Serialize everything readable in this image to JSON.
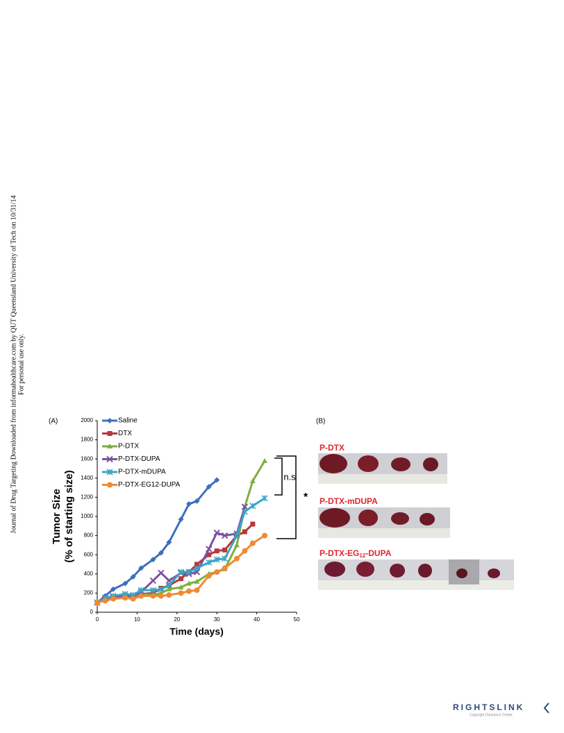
{
  "sidebar": [
    "Journal of Drug Targeting Downloaded from informahealthcare.com by QUT Queensland University of Tech on 10/31/14",
    "For personal use only."
  ],
  "chart_data": {
    "type": "line",
    "panel": "(A)",
    "xlabel": "Time (days)",
    "ylabel": [
      "Tumor Size",
      "(% of starting size)"
    ],
    "xlim": [
      0,
      50
    ],
    "xticks": [
      0,
      10,
      20,
      30,
      40,
      50
    ],
    "ylim": [
      0,
      2000
    ],
    "yticks": [
      0,
      200,
      400,
      600,
      800,
      1000,
      1200,
      1400,
      1600,
      1800,
      2000
    ],
    "legend": "upper left",
    "grid": false,
    "annotations": [
      "n.s",
      "*"
    ],
    "series": [
      {
        "name": "Saline",
        "color": "#3c6fbe",
        "marker": "diamond",
        "x": [
          0,
          2,
          4,
          7,
          9,
          11,
          14,
          16,
          18,
          21,
          23,
          25,
          28,
          30
        ],
        "values": [
          100,
          170,
          240,
          300,
          370,
          460,
          550,
          620,
          730,
          970,
          1130,
          1160,
          1310,
          1380
        ]
      },
      {
        "name": "DTX",
        "color": "#b8373a",
        "marker": "square",
        "x": [
          0,
          2,
          4,
          7,
          9,
          11,
          14,
          16,
          18,
          21,
          23,
          25,
          28,
          30,
          32,
          35,
          37,
          39
        ],
        "values": [
          100,
          130,
          150,
          160,
          150,
          190,
          200,
          250,
          280,
          350,
          420,
          500,
          600,
          640,
          650,
          800,
          840,
          920
        ]
      },
      {
        "name": "P-DTX",
        "color": "#7fae3e",
        "marker": "triangle",
        "x": [
          0,
          2,
          4,
          7,
          9,
          11,
          14,
          16,
          18,
          21,
          23,
          25,
          28,
          30,
          32,
          35,
          37,
          39,
          42
        ],
        "values": [
          100,
          130,
          150,
          160,
          170,
          190,
          180,
          200,
          240,
          260,
          300,
          320,
          400,
          420,
          450,
          700,
          1100,
          1370,
          1580
        ]
      },
      {
        "name": "P-DTX-DUPA",
        "color": "#7a52a0",
        "marker": "x",
        "x": [
          0,
          2,
          4,
          7,
          9,
          11,
          14,
          16,
          18,
          21,
          23,
          25,
          28,
          30,
          32,
          35,
          37
        ],
        "values": [
          100,
          140,
          160,
          170,
          170,
          210,
          330,
          410,
          330,
          410,
          400,
          420,
          660,
          830,
          800,
          820,
          1100
        ]
      },
      {
        "name": "P-DTX-mDUPA",
        "color": "#3aa5c5",
        "marker": "star",
        "x": [
          0,
          2,
          4,
          7,
          9,
          11,
          14,
          16,
          18,
          21,
          23,
          25,
          28,
          30,
          32,
          35,
          37,
          39,
          42
        ],
        "values": [
          100,
          150,
          170,
          190,
          180,
          230,
          230,
          240,
          280,
          420,
          420,
          460,
          520,
          550,
          560,
          800,
          1050,
          1110,
          1190
        ]
      },
      {
        "name": "P-DTX-EG12-DUPA",
        "color": "#f08a32",
        "marker": "circle",
        "x": [
          0,
          2,
          4,
          7,
          9,
          11,
          14,
          16,
          18,
          21,
          23,
          25,
          28,
          30,
          32,
          35,
          37,
          39,
          42
        ],
        "values": [
          100,
          120,
          140,
          150,
          140,
          170,
          170,
          170,
          180,
          200,
          220,
          230,
          380,
          420,
          460,
          560,
          640,
          720,
          800
        ]
      }
    ]
  },
  "panel_b": {
    "panel": "(B)",
    "labels": [
      "P-DTX",
      "P-DTX-mDUPA"
    ],
    "label3": {
      "prefix": "P-DTX-EG",
      "sub": "12",
      "suffix": "-DUPA"
    }
  },
  "logo": {
    "name": "RIGHTSLINK",
    "tagline": "Copyright Clearance Center"
  }
}
